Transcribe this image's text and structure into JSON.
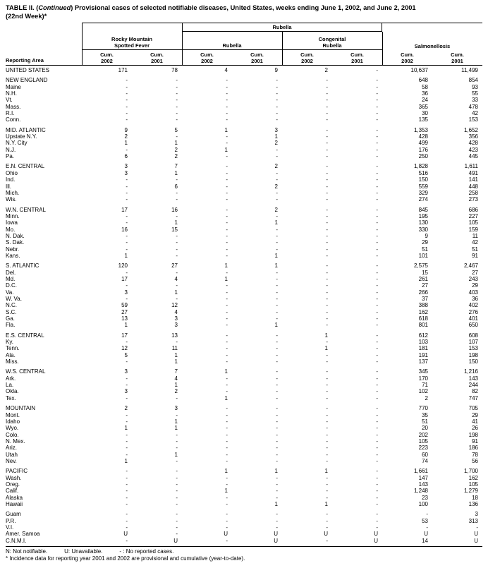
{
  "title": {
    "prefix": "TABLE II. (",
    "continued": "Continued",
    "rest": ") Provisional cases of selected notifiable diseases, United States, weeks ending June 1, 2002, and June 2, 2001",
    "line2": "(22nd Week)*"
  },
  "header": {
    "reporting_area": "Reporting Area",
    "span_group": "Rubella",
    "groups": [
      "Rocky Mountain\nSpotted Fever",
      "Rubella",
      "Congenital\nRubella",
      "Salmonellosis"
    ],
    "col_labels": [
      "Cum.\n2002",
      "Cum.\n2001",
      "Cum.\n2002",
      "Cum.\n2001",
      "Cum.\n2002",
      "Cum.\n2001",
      "Cum.\n2002",
      "Cum.\n2001"
    ]
  },
  "table": {
    "groups": [
      {
        "rows": [
          {
            "area": "UNITED STATES",
            "vals": [
              "171",
              "78",
              "4",
              "9",
              "2",
              "-",
              "10,637",
              "11,499"
            ]
          }
        ]
      },
      {
        "rows": [
          {
            "area": "NEW ENGLAND",
            "vals": [
              "-",
              "-",
              "-",
              "-",
              "-",
              "-",
              "648",
              "854"
            ]
          },
          {
            "area": "Maine",
            "vals": [
              "-",
              "-",
              "-",
              "-",
              "-",
              "-",
              "58",
              "93"
            ]
          },
          {
            "area": "N.H.",
            "vals": [
              "-",
              "-",
              "-",
              "-",
              "-",
              "-",
              "36",
              "55"
            ]
          },
          {
            "area": "Vt.",
            "vals": [
              "-",
              "-",
              "-",
              "-",
              "-",
              "-",
              "24",
              "33"
            ]
          },
          {
            "area": "Mass.",
            "vals": [
              "-",
              "-",
              "-",
              "-",
              "-",
              "-",
              "365",
              "478"
            ]
          },
          {
            "area": "R.I.",
            "vals": [
              "-",
              "-",
              "-",
              "-",
              "-",
              "-",
              "30",
              "42"
            ]
          },
          {
            "area": "Conn.",
            "vals": [
              "-",
              "-",
              "-",
              "-",
              "-",
              "-",
              "135",
              "153"
            ]
          }
        ]
      },
      {
        "rows": [
          {
            "area": "MID. ATLANTIC",
            "vals": [
              "9",
              "5",
              "1",
              "3",
              "-",
              "-",
              "1,353",
              "1,652"
            ]
          },
          {
            "area": "Upstate N.Y.",
            "vals": [
              "2",
              "-",
              "-",
              "1",
              "-",
              "-",
              "428",
              "356"
            ]
          },
          {
            "area": "N.Y. City",
            "vals": [
              "1",
              "1",
              "-",
              "2",
              "-",
              "-",
              "499",
              "428"
            ]
          },
          {
            "area": "N.J.",
            "vals": [
              "-",
              "2",
              "1",
              "-",
              "-",
              "-",
              "176",
              "423"
            ]
          },
          {
            "area": "Pa.",
            "vals": [
              "6",
              "2",
              "-",
              "-",
              "-",
              "-",
              "250",
              "445"
            ]
          }
        ]
      },
      {
        "rows": [
          {
            "area": "E.N. CENTRAL",
            "vals": [
              "3",
              "7",
              "-",
              "2",
              "-",
              "-",
              "1,828",
              "1,611"
            ]
          },
          {
            "area": "Ohio",
            "vals": [
              "3",
              "1",
              "-",
              "-",
              "-",
              "-",
              "516",
              "491"
            ]
          },
          {
            "area": "Ind.",
            "vals": [
              "-",
              "-",
              "-",
              "-",
              "-",
              "-",
              "150",
              "141"
            ]
          },
          {
            "area": "Ill.",
            "vals": [
              "-",
              "6",
              "-",
              "2",
              "-",
              "-",
              "559",
              "448"
            ]
          },
          {
            "area": "Mich.",
            "vals": [
              "-",
              "-",
              "-",
              "-",
              "-",
              "-",
              "329",
              "258"
            ]
          },
          {
            "area": "Wis.",
            "vals": [
              "-",
              "-",
              "-",
              "-",
              "-",
              "-",
              "274",
              "273"
            ]
          }
        ]
      },
      {
        "rows": [
          {
            "area": "W.N. CENTRAL",
            "vals": [
              "17",
              "16",
              "-",
              "2",
              "-",
              "-",
              "845",
              "686"
            ]
          },
          {
            "area": "Minn.",
            "vals": [
              "-",
              "-",
              "-",
              "-",
              "-",
              "-",
              "195",
              "227"
            ]
          },
          {
            "area": "Iowa",
            "vals": [
              "-",
              "1",
              "-",
              "1",
              "-",
              "-",
              "130",
              "105"
            ]
          },
          {
            "area": "Mo.",
            "vals": [
              "16",
              "15",
              "-",
              "-",
              "-",
              "-",
              "330",
              "159"
            ]
          },
          {
            "area": "N. Dak.",
            "vals": [
              "-",
              "-",
              "-",
              "-",
              "-",
              "-",
              "9",
              "11"
            ]
          },
          {
            "area": "S. Dak.",
            "vals": [
              "-",
              "-",
              "-",
              "-",
              "-",
              "-",
              "29",
              "42"
            ]
          },
          {
            "area": "Nebr.",
            "vals": [
              "-",
              "-",
              "-",
              "-",
              "-",
              "-",
              "51",
              "51"
            ]
          },
          {
            "area": "Kans.",
            "vals": [
              "1",
              "-",
              "-",
              "1",
              "-",
              "-",
              "101",
              "91"
            ]
          }
        ]
      },
      {
        "rows": [
          {
            "area": "S. ATLANTIC",
            "vals": [
              "120",
              "27",
              "1",
              "1",
              "-",
              "-",
              "2,575",
              "2,467"
            ]
          },
          {
            "area": "Del.",
            "vals": [
              "-",
              "-",
              "-",
              "-",
              "-",
              "-",
              "15",
              "27"
            ]
          },
          {
            "area": "Md.",
            "vals": [
              "17",
              "4",
              "1",
              "-",
              "-",
              "-",
              "261",
              "243"
            ]
          },
          {
            "area": "D.C.",
            "vals": [
              "-",
              "-",
              "-",
              "-",
              "-",
              "-",
              "27",
              "29"
            ]
          },
          {
            "area": "Va.",
            "vals": [
              "3",
              "1",
              "-",
              "-",
              "-",
              "-",
              "266",
              "403"
            ]
          },
          {
            "area": "W. Va.",
            "vals": [
              "-",
              "-",
              "-",
              "-",
              "-",
              "-",
              "37",
              "36"
            ]
          },
          {
            "area": "N.C.",
            "vals": [
              "59",
              "12",
              "-",
              "-",
              "-",
              "-",
              "388",
              "402"
            ]
          },
          {
            "area": "S.C.",
            "vals": [
              "27",
              "4",
              "-",
              "-",
              "-",
              "-",
              "162",
              "276"
            ]
          },
          {
            "area": "Ga.",
            "vals": [
              "13",
              "3",
              "-",
              "-",
              "-",
              "-",
              "618",
              "401"
            ]
          },
          {
            "area": "Fla.",
            "vals": [
              "1",
              "3",
              "-",
              "1",
              "-",
              "-",
              "801",
              "650"
            ]
          }
        ]
      },
      {
        "rows": [
          {
            "area": "E.S. CENTRAL",
            "vals": [
              "17",
              "13",
              "-",
              "-",
              "1",
              "-",
              "612",
              "608"
            ]
          },
          {
            "area": "Ky.",
            "vals": [
              "-",
              "-",
              "-",
              "-",
              "-",
              "-",
              "103",
              "107"
            ]
          },
          {
            "area": "Tenn.",
            "vals": [
              "12",
              "11",
              "-",
              "-",
              "1",
              "-",
              "181",
              "153"
            ]
          },
          {
            "area": "Ala.",
            "vals": [
              "5",
              "1",
              "-",
              "-",
              "-",
              "-",
              "191",
              "198"
            ]
          },
          {
            "area": "Miss.",
            "vals": [
              "-",
              "1",
              "-",
              "-",
              "-",
              "-",
              "137",
              "150"
            ]
          }
        ]
      },
      {
        "rows": [
          {
            "area": "W.S. CENTRAL",
            "vals": [
              "3",
              "7",
              "1",
              "-",
              "-",
              "-",
              "345",
              "1,216"
            ]
          },
          {
            "area": "Ark.",
            "vals": [
              "-",
              "4",
              "-",
              "-",
              "-",
              "-",
              "170",
              "143"
            ]
          },
          {
            "area": "La.",
            "vals": [
              "-",
              "1",
              "-",
              "-",
              "-",
              "-",
              "71",
              "244"
            ]
          },
          {
            "area": "Okla.",
            "vals": [
              "3",
              "2",
              "-",
              "-",
              "-",
              "-",
              "102",
              "82"
            ]
          },
          {
            "area": "Tex.",
            "vals": [
              "-",
              "-",
              "1",
              "-",
              "-",
              "-",
              "2",
              "747"
            ]
          }
        ]
      },
      {
        "rows": [
          {
            "area": "MOUNTAIN",
            "vals": [
              "2",
              "3",
              "-",
              "-",
              "-",
              "-",
              "770",
              "705"
            ]
          },
          {
            "area": "Mont.",
            "vals": [
              "-",
              "-",
              "-",
              "-",
              "-",
              "-",
              "35",
              "29"
            ]
          },
          {
            "area": "Idaho",
            "vals": [
              "-",
              "1",
              "-",
              "-",
              "-",
              "-",
              "51",
              "41"
            ]
          },
          {
            "area": "Wyo.",
            "vals": [
              "1",
              "1",
              "-",
              "-",
              "-",
              "-",
              "20",
              "26"
            ]
          },
          {
            "area": "Colo.",
            "vals": [
              "-",
              "-",
              "-",
              "-",
              "-",
              "-",
              "202",
              "198"
            ]
          },
          {
            "area": "N. Mex.",
            "vals": [
              "-",
              "-",
              "-",
              "-",
              "-",
              "-",
              "105",
              "91"
            ]
          },
          {
            "area": "Ariz.",
            "vals": [
              "-",
              "-",
              "-",
              "-",
              "-",
              "-",
              "223",
              "186"
            ]
          },
          {
            "area": "Utah",
            "vals": [
              "-",
              "1",
              "-",
              "-",
              "-",
              "-",
              "60",
              "78"
            ]
          },
          {
            "area": "Nev.",
            "vals": [
              "1",
              "-",
              "-",
              "-",
              "-",
              "-",
              "74",
              "56"
            ]
          }
        ]
      },
      {
        "rows": [
          {
            "area": "PACIFIC",
            "vals": [
              "-",
              "-",
              "1",
              "1",
              "1",
              "-",
              "1,661",
              "1,700"
            ]
          },
          {
            "area": "Wash.",
            "vals": [
              "-",
              "-",
              "-",
              "-",
              "-",
              "-",
              "147",
              "162"
            ]
          },
          {
            "area": "Oreg.",
            "vals": [
              "-",
              "-",
              "-",
              "-",
              "-",
              "-",
              "143",
              "105"
            ]
          },
          {
            "area": "Calif.",
            "vals": [
              "-",
              "-",
              "1",
              "-",
              "-",
              "-",
              "1,248",
              "1,279"
            ]
          },
          {
            "area": "Alaska",
            "vals": [
              "-",
              "-",
              "-",
              "-",
              "-",
              "-",
              "23",
              "18"
            ]
          },
          {
            "area": "Hawaii",
            "vals": [
              "-",
              "-",
              "-",
              "1",
              "1",
              "-",
              "100",
              "136"
            ]
          }
        ]
      },
      {
        "rows": [
          {
            "area": "Guam",
            "vals": [
              "-",
              "-",
              "-",
              "-",
              "-",
              "-",
              "-",
              "3"
            ]
          },
          {
            "area": "P.R.",
            "vals": [
              "-",
              "-",
              "-",
              "-",
              "-",
              "-",
              "53",
              "313"
            ]
          },
          {
            "area": "V.I.",
            "vals": [
              "-",
              "-",
              "-",
              "-",
              "-",
              "-",
              "-",
              "-"
            ]
          },
          {
            "area": "Amer. Samoa",
            "vals": [
              "U",
              "-",
              "U",
              "U",
              "U",
              "U",
              "U",
              "U"
            ]
          },
          {
            "area": "C.N.M.I.",
            "vals": [
              "-",
              "U",
              "-",
              "U",
              "-",
              "U",
              "14",
              "U"
            ]
          }
        ]
      }
    ]
  },
  "footer": {
    "notes": [
      "N: Not notifiable.",
      "U: Unavailable.",
      "- : No reported cases."
    ],
    "note2": "* Incidence data for reporting year 2001 and 2002 are provisional and cumulative (year-to-date)."
  }
}
